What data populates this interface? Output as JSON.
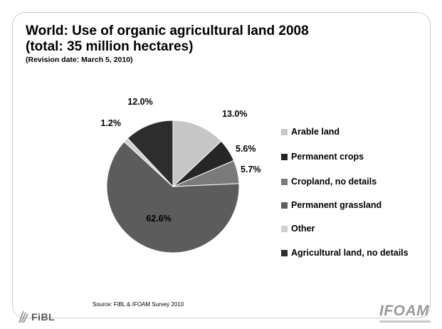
{
  "slide": {
    "title_line1": "World: Use of organic agricultural land 2008",
    "title_line2": "(total: 35 million hectares)",
    "revision": "(Revision date: March 5, 2010)",
    "source": "Source: FiBL & IFOAM Survey 2010",
    "logo_left": "FiBL",
    "logo_right": "IFOAM"
  },
  "chart_data": {
    "type": "pie",
    "title": "World: Use of organic agricultural land 2008",
    "subtitle": "(total: 35 million hectares)",
    "legend_position": "right",
    "slices": [
      {
        "label": "Arable land",
        "value": 13.0,
        "display": "13.0%",
        "color": "#c6c6c6"
      },
      {
        "label": "Permanent crops",
        "value": 5.6,
        "display": "5.6%",
        "color": "#262626"
      },
      {
        "label": "Cropland, no details",
        "value": 5.7,
        "display": "5.7%",
        "color": "#7a7a7a"
      },
      {
        "label": "Permanent grassland",
        "value": 62.6,
        "display": "62.6%",
        "color": "#5c5c5c"
      },
      {
        "label": "Other",
        "value": 1.2,
        "display": "1.2%",
        "color": "#cfcfcf"
      },
      {
        "label": "Agricultural land, no details",
        "value": 12.0,
        "display": "12.0%",
        "color": "#2d2d2d"
      }
    ]
  }
}
